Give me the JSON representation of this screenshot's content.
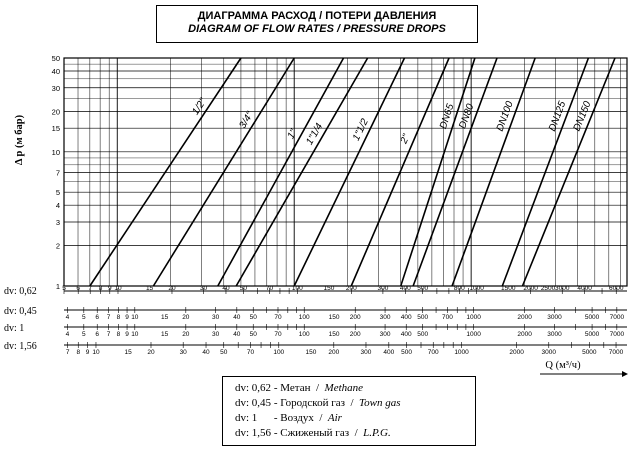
{
  "header": {
    "title_ru": "ДИАГРАММА РАСХОД / ПОТЕРИ ДАВЛЕНИЯ",
    "title_en": "DIAGRAM OF FLOW RATES / PRESSURE DROPS"
  },
  "chart_data": {
    "type": "line",
    "y_axis": {
      "label": "Δ p  (м бар)",
      "scale": "log",
      "ylim": [
        1,
        50
      ],
      "ticks": [
        "1",
        "2",
        "3",
        "4",
        "5",
        "7",
        "10",
        "15",
        "20",
        "30",
        "40",
        "50"
      ]
    },
    "x_axis": {
      "label": "Q  (м³/ч)",
      "scale": "log",
      "xlim": [
        5,
        7600
      ],
      "grid": true
    },
    "flow_scales": [
      {
        "name": "dv: 0,62",
        "ticks": [
          "5",
          "6",
          "7",
          "8",
          "9",
          "10",
          "15",
          "20",
          "30",
          "40",
          "50",
          "70",
          "100",
          "150",
          "200",
          "300",
          "400",
          "500",
          "800",
          "1000",
          "1500",
          "2000",
          "2500",
          "3000",
          "4000",
          "6000"
        ]
      },
      {
        "name": "dv: 0,45",
        "ticks": [
          "4",
          "5",
          "6",
          "7",
          "8",
          "9",
          "10",
          "15",
          "20",
          "30",
          "40",
          "50",
          "70",
          "100",
          "150",
          "200",
          "300",
          "400",
          "500",
          "700",
          "1000",
          "2000",
          "3000",
          "5000",
          "7000"
        ]
      },
      {
        "name": "dv: 1",
        "ticks": [
          "4",
          "5",
          "6",
          "7",
          "8",
          "9",
          "10",
          "15",
          "20",
          "30",
          "40",
          "50",
          "70",
          "100",
          "150",
          "200",
          "300",
          "400",
          "500",
          "1000",
          "2000",
          "3000",
          "5000",
          "7000"
        ]
      },
      {
        "name": "dv: 1,56",
        "ticks": [
          "7",
          "8",
          "9",
          "10",
          "15",
          "20",
          "30",
          "40",
          "50",
          "70",
          "100",
          "150",
          "200",
          "300",
          "400",
          "500",
          "700",
          "1000",
          "2000",
          "3000",
          "5000",
          "7000"
        ]
      }
    ],
    "series": [
      {
        "name": "1/2\"",
        "points": [
          [
            7,
            1
          ],
          [
            50,
            50
          ]
        ]
      },
      {
        "name": "3/4\"",
        "points": [
          [
            16,
            1
          ],
          [
            100,
            50
          ]
        ]
      },
      {
        "name": "1\"",
        "points": [
          [
            37,
            1
          ],
          [
            190,
            50
          ]
        ]
      },
      {
        "name": "1\"1/4",
        "points": [
          [
            47,
            1
          ],
          [
            260,
            50
          ]
        ]
      },
      {
        "name": "1\"1/2",
        "points": [
          [
            100,
            1
          ],
          [
            420,
            50
          ]
        ]
      },
      {
        "name": "2\"",
        "points": [
          [
            210,
            1
          ],
          [
            750,
            50
          ]
        ]
      },
      {
        "name": "DN65",
        "points": [
          [
            400,
            1
          ],
          [
            1050,
            50
          ]
        ]
      },
      {
        "name": "DN80",
        "points": [
          [
            470,
            1
          ],
          [
            1400,
            50
          ]
        ]
      },
      {
        "name": "DN100",
        "points": [
          [
            780,
            1
          ],
          [
            2300,
            50
          ]
        ]
      },
      {
        "name": "DN125",
        "points": [
          [
            1500,
            1
          ],
          [
            4600,
            50
          ]
        ]
      },
      {
        "name": "DN150",
        "points": [
          [
            1950,
            1
          ],
          [
            6500,
            50
          ]
        ]
      }
    ]
  },
  "legend": {
    "rows": [
      {
        "dv": "dv: 0,62",
        "ru": "Метан",
        "en": "Methane"
      },
      {
        "dv": "dv: 0,45",
        "ru": "Городской газ",
        "en": "Town gas"
      },
      {
        "dv": "dv: 1",
        "ru": "Воздух",
        "en": "Air"
      },
      {
        "dv": "dv: 1,56",
        "ru": "Сжиженый газ",
        "en": "L.P.G."
      }
    ]
  }
}
